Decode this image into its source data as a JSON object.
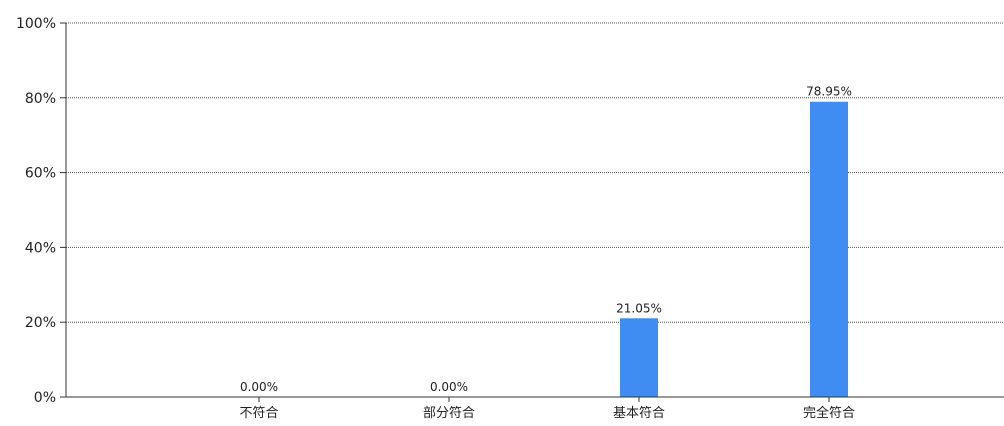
{
  "chart_data": {
    "type": "bar",
    "title": "",
    "xlabel": "",
    "ylabel": "",
    "categories": [
      "不符合",
      "部分符合",
      "基本符合",
      "完全符合"
    ],
    "values": [
      0.0,
      0.0,
      21.05,
      78.95
    ],
    "value_labels": [
      "0.00%",
      "0.00%",
      "21.05%",
      "78.95%"
    ],
    "ylim": [
      0,
      100
    ],
    "yticks": [
      0,
      20,
      40,
      60,
      80,
      100
    ],
    "ytick_labels": [
      "0%",
      "20%",
      "40%",
      "60%",
      "80%",
      "100%"
    ],
    "grid": true,
    "legend": "none",
    "colors": {
      "bar": "#3f8cf2",
      "axis": "#333333",
      "grid": "#555555",
      "text": "#222222"
    }
  }
}
